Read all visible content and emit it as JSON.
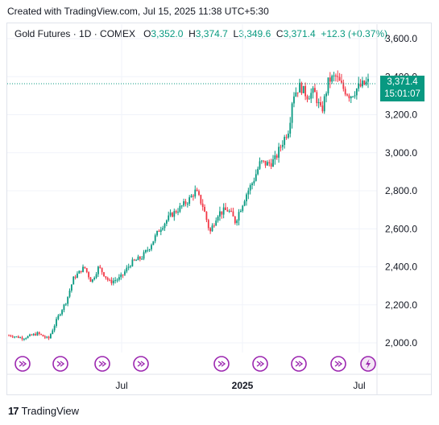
{
  "caption": "Created with TradingView.com, Jul 15, 2025 11:38 UTC+5:30",
  "legend": {
    "symbol": "Gold Futures · 1D · COMEX",
    "open_label": "O",
    "open": "3,352.0",
    "high_label": "H",
    "high": "3,374.7",
    "low_label": "L",
    "low": "3,349.6",
    "close_label": "C",
    "close": "3,371.4",
    "change": "+12.3 (+0.37%)"
  },
  "last_price": {
    "price": "3,371.4",
    "countdown": "15:01:07",
    "value": 3371.4
  },
  "brand": "TradingView",
  "colors": {
    "up": "#089981",
    "down": "#f23645",
    "grid": "#f0f3fa",
    "event": "#9c27b0"
  },
  "chart_data": {
    "type": "candlestick",
    "x_tick_labels": [
      "Jul",
      "2025",
      "Jul"
    ],
    "y_tick_labels": [
      "2,000.0",
      "2,200.0",
      "2,400.0",
      "2,600.0",
      "2,800.0",
      "3,000.0",
      "3,200.0",
      "3,400.0",
      "3,600.0"
    ],
    "y_ticks": [
      2000,
      2200,
      2400,
      2600,
      2800,
      3000,
      3200,
      3400,
      3600
    ],
    "ylim": [
      1950,
      3650
    ],
    "grid": true,
    "price_path": [
      [
        0,
        2040
      ],
      [
        0.04,
        2025
      ],
      [
        0.08,
        2050
      ],
      [
        0.11,
        2020
      ],
      [
        0.14,
        2150
      ],
      [
        0.16,
        2220
      ],
      [
        0.18,
        2340
      ],
      [
        0.21,
        2400
      ],
      [
        0.23,
        2320
      ],
      [
        0.25,
        2400
      ],
      [
        0.28,
        2320
      ],
      [
        0.31,
        2340
      ],
      [
        0.34,
        2420
      ],
      [
        0.37,
        2450
      ],
      [
        0.39,
        2500
      ],
      [
        0.42,
        2600
      ],
      [
        0.45,
        2670
      ],
      [
        0.47,
        2700
      ],
      [
        0.5,
        2750
      ],
      [
        0.52,
        2800
      ],
      [
        0.54,
        2720
      ],
      [
        0.56,
        2580
      ],
      [
        0.58,
        2680
      ],
      [
        0.61,
        2700
      ],
      [
        0.63,
        2640
      ],
      [
        0.66,
        2780
      ],
      [
        0.68,
        2850
      ],
      [
        0.7,
        2950
      ],
      [
        0.72,
        2940
      ],
      [
        0.74,
        2960
      ],
      [
        0.76,
        3050
      ],
      [
        0.78,
        3130
      ],
      [
        0.79,
        3300
      ],
      [
        0.81,
        3350
      ],
      [
        0.83,
        3300
      ],
      [
        0.85,
        3320
      ],
      [
        0.87,
        3210
      ],
      [
        0.89,
        3380
      ],
      [
        0.91,
        3400
      ],
      [
        0.93,
        3340
      ],
      [
        0.95,
        3300
      ],
      [
        0.97,
        3340
      ],
      [
        1.0,
        3371
      ]
    ],
    "event_markers": 9,
    "last_marker": "lightning"
  }
}
